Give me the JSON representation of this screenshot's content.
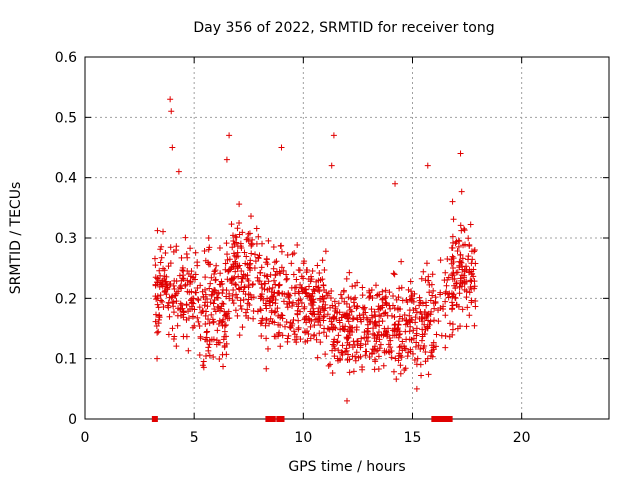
{
  "chart_data": {
    "type": "scatter",
    "title": "Day 356 of 2022, SRMTID for receiver tong",
    "xlabel": "GPS time / hours",
    "ylabel": "SRMTID / TECUs",
    "xlim": [
      0,
      24
    ],
    "ylim": [
      0,
      0.6
    ],
    "x_ticks": [
      0,
      5,
      10,
      15,
      20
    ],
    "y_ticks": [
      0,
      0.1,
      0.2,
      0.3,
      0.4,
      0.5,
      0.6
    ],
    "x_tick_labels": [
      "0",
      "5",
      "10",
      "15",
      "20"
    ],
    "y_tick_labels": [
      "0",
      "0.1",
      "0.2",
      "0.3",
      "0.4",
      "0.5",
      "0.6"
    ],
    "grid": true,
    "series": [
      {
        "name": "tong",
        "color": "#e00000",
        "marker": "plus",
        "segments": [
          {
            "start": 3.2,
            "end": 4.9,
            "mean": 0.21,
            "spread": 0.07,
            "count": 150
          },
          {
            "start": 4.9,
            "end": 6.5,
            "mean": 0.19,
            "spread": 0.075,
            "count": 150
          },
          {
            "start": 6.5,
            "end": 8.0,
            "mean": 0.24,
            "spread": 0.07,
            "count": 140
          },
          {
            "start": 8.0,
            "end": 9.6,
            "mean": 0.2,
            "spread": 0.065,
            "count": 140
          },
          {
            "start": 9.6,
            "end": 11.2,
            "mean": 0.19,
            "spread": 0.065,
            "count": 150
          },
          {
            "start": 11.2,
            "end": 12.8,
            "mean": 0.16,
            "spread": 0.06,
            "count": 150
          },
          {
            "start": 12.8,
            "end": 14.4,
            "mean": 0.16,
            "spread": 0.065,
            "count": 150
          },
          {
            "start": 14.4,
            "end": 16.0,
            "mean": 0.16,
            "spread": 0.07,
            "count": 140
          },
          {
            "start": 16.0,
            "end": 17.0,
            "mean": 0.19,
            "spread": 0.06,
            "count": 40
          },
          {
            "start": 16.8,
            "end": 17.9,
            "mean": 0.24,
            "spread": 0.075,
            "count": 110
          }
        ],
        "notable_points": [
          [
            3.9,
            0.53
          ],
          [
            3.95,
            0.51
          ],
          [
            4.0,
            0.45
          ],
          [
            4.3,
            0.41
          ],
          [
            6.6,
            0.47
          ],
          [
            6.5,
            0.43
          ],
          [
            9.0,
            0.45
          ],
          [
            11.4,
            0.47
          ],
          [
            11.3,
            0.42
          ],
          [
            14.2,
            0.39
          ],
          [
            15.7,
            0.42
          ],
          [
            17.2,
            0.44
          ],
          [
            3.3,
            0.1
          ],
          [
            16.1,
            0.14
          ],
          [
            15.2,
            0.05
          ],
          [
            12.0,
            0.03
          ]
        ],
        "zero_points": [
          3.2,
          8.4,
          8.5,
          8.6,
          8.9,
          9.0,
          16.0,
          16.1,
          16.2,
          16.4,
          16.5,
          16.7
        ]
      }
    ]
  }
}
